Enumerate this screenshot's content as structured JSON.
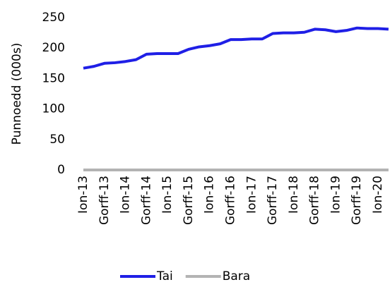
{
  "chart_data": {
    "type": "line",
    "y_label": "Punnoedd (000s)",
    "categories": [
      "Ion-13",
      null,
      "Gorff-13",
      null,
      "Ion-14",
      null,
      "Gorff-14",
      null,
      "Ion-15",
      null,
      "Gorff-15",
      null,
      "Ion-16",
      null,
      "Gorff-16",
      null,
      "Ion-17",
      null,
      "Gorff-17",
      null,
      "Ion-18",
      null,
      "Gorff-18",
      null,
      "Ion-19",
      null,
      "Gorff-19",
      null,
      "Ion-20",
      null
    ],
    "series": [
      {
        "name": "Tai",
        "color": "#1f1fe6",
        "values": [
          167,
          170,
          175,
          176,
          178,
          181,
          190,
          191,
          191,
          191,
          198,
          202,
          204,
          207,
          214,
          214,
          215,
          215,
          224,
          225,
          225,
          226,
          231,
          230,
          227,
          229,
          233,
          232,
          232,
          231
        ]
      },
      {
        "name": "Bara",
        "color": "#b3b3b3",
        "values": [
          0,
          0,
          0,
          0,
          0,
          0,
          0,
          0,
          0,
          0,
          0,
          0,
          0,
          0,
          0,
          0,
          0,
          0,
          0,
          0,
          0,
          0,
          0,
          0,
          0,
          0,
          0,
          0,
          0,
          0
        ]
      }
    ],
    "ylim": [
      0,
      250
    ],
    "yticks": [
      0,
      50,
      100,
      150,
      200,
      250
    ],
    "legend": "bottom"
  }
}
